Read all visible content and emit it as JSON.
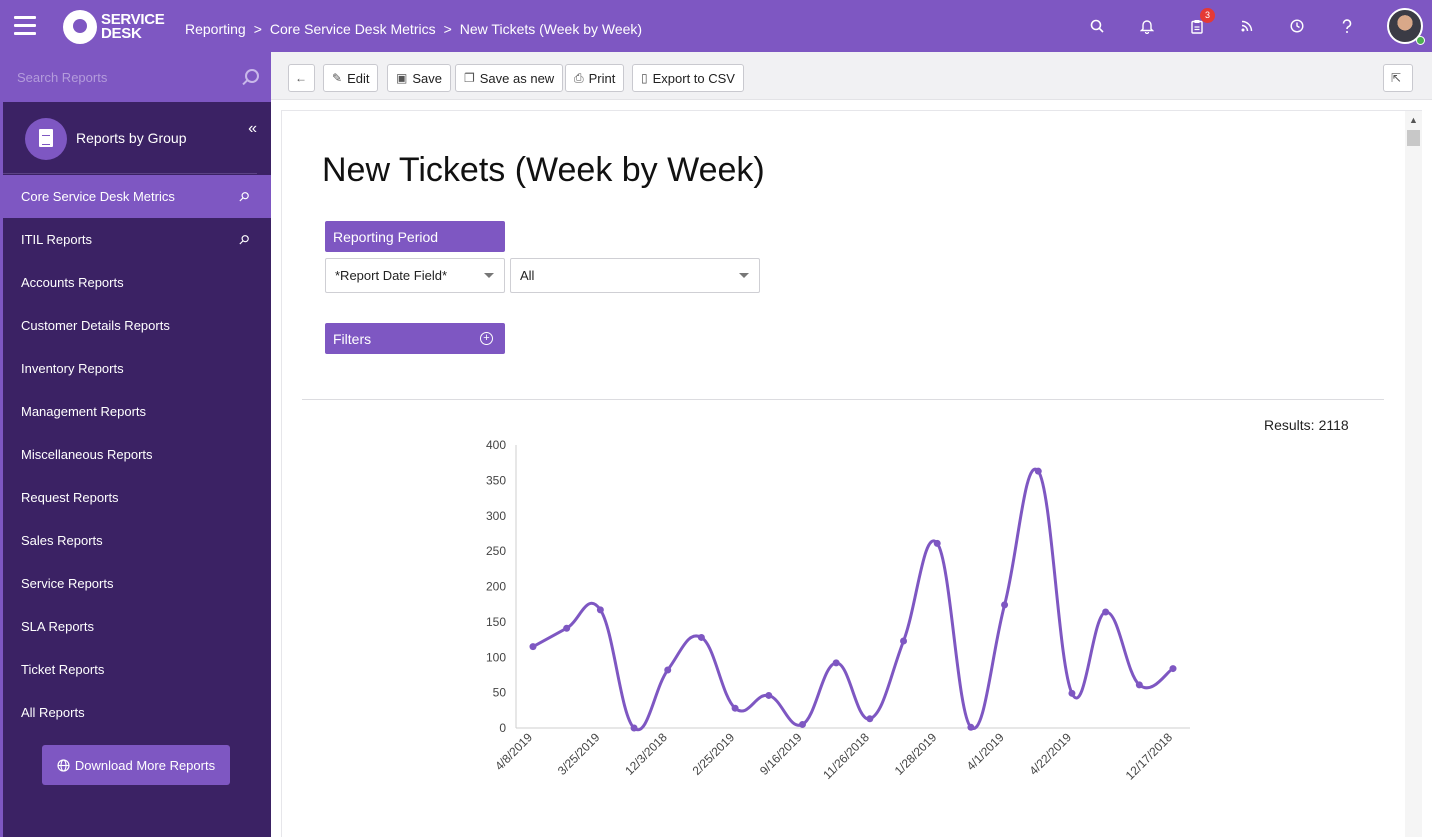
{
  "header": {
    "logo_text_1": "SERVICE",
    "logo_text_2": "DESK",
    "breadcrumb": [
      "Reporting",
      ">",
      "Core Service Desk Metrics",
      ">",
      "New Tickets (Week by Week)"
    ],
    "notification_count": "3",
    "icons": [
      "search-icon",
      "bell-icon",
      "clipboard-icon",
      "rss-icon",
      "clock-icon",
      "help-icon"
    ]
  },
  "sidebar": {
    "search_placeholder": "Search Reports",
    "group_label": "Reports by Group",
    "items": [
      {
        "label": "Core Service Desk Metrics",
        "active": true,
        "pinned": true
      },
      {
        "label": "ITIL Reports",
        "active": false,
        "pinned": true
      },
      {
        "label": "Accounts Reports"
      },
      {
        "label": "Customer Details Reports"
      },
      {
        "label": "Inventory Reports"
      },
      {
        "label": "Management Reports"
      },
      {
        "label": "Miscellaneous Reports"
      },
      {
        "label": "Request Reports"
      },
      {
        "label": "Sales Reports"
      },
      {
        "label": "Service Reports"
      },
      {
        "label": "SLA Reports"
      },
      {
        "label": "Ticket Reports"
      },
      {
        "label": "All Reports"
      }
    ],
    "download_label": "Download More Reports"
  },
  "toolbar": {
    "edit": "Edit",
    "save": "Save",
    "save_as_new": "Save as new",
    "print": "Print",
    "export": "Export to CSV"
  },
  "report": {
    "title": "New Tickets (Week by Week)",
    "reporting_period_label": "Reporting Period",
    "date_field_value": "*Report Date Field*",
    "period_value": "All",
    "filters_label": "Filters",
    "results_label": "Results:",
    "results_count": "2118"
  },
  "colors": {
    "accent": "#7e57c2",
    "sidebar_bg": "#3b2264"
  },
  "chart_data": {
    "type": "line",
    "x": [
      "4/8/2019",
      "",
      "3/25/2019",
      "",
      "12/3/2018",
      "",
      "2/25/2019",
      "",
      "9/16/2019",
      "",
      "11/26/2018",
      "",
      "1/28/2019",
      "",
      "4/1/2019",
      "",
      "4/22/2019",
      "",
      "",
      "12/17/2018"
    ],
    "y": [
      115,
      141,
      167,
      0,
      82,
      128,
      28,
      46,
      5,
      92,
      13,
      123,
      261,
      1,
      174,
      363,
      49,
      164,
      61,
      84
    ],
    "ylim": [
      0,
      400
    ],
    "yticks": [
      0,
      50,
      100,
      150,
      200,
      250,
      300,
      350,
      400
    ],
    "xlabel": "",
    "ylabel": "",
    "grid": false,
    "color": "#7e57c2"
  }
}
